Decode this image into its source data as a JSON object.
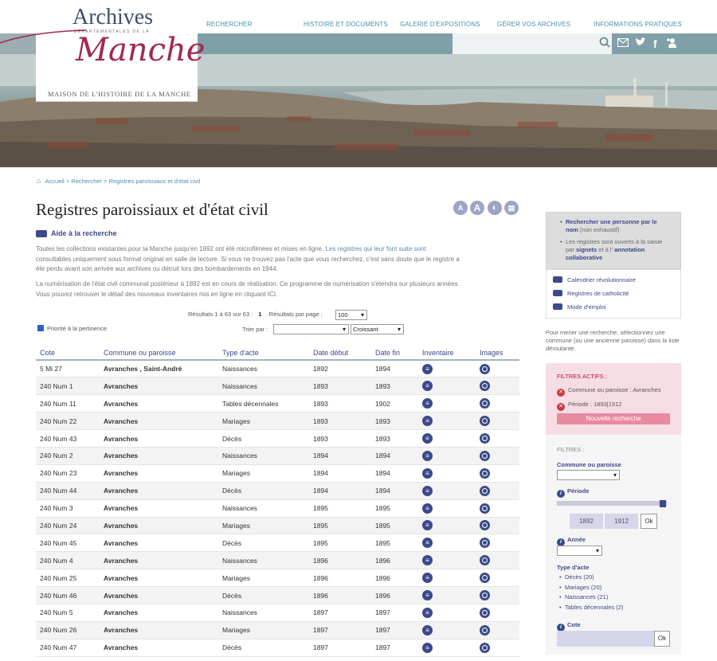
{
  "header": {
    "logo_top": "Archives",
    "logo_dept": "DÉPARTEMENTALES DE LA",
    "logo_main": "Manche",
    "logo_sub": "MAISON DE L'HISTOIRE DE LA MANCHE",
    "nav": [
      "RECHERCHER",
      "HISTOIRE ET DOCUMENTS",
      "GALERIE D'EXPOSITIONS",
      "GÉRER VOS ARCHIVES",
      "INFORMATIONS PRATIQUES"
    ]
  },
  "breadcrumb": "Accueil > Rechercher > Registres paroissiaux et d'état civil",
  "page_title": "Registres paroissiaux et d'état civil",
  "help_label": "Aide à la recherche",
  "intro": {
    "p1a": "Toutes les collections existantes pour la Manche jusqu'en 1892 ont été microfilmées et mises en ligne.",
    "p1b": " Les registres qui leur font suite sont",
    "p1c": "consultables uniquement sous format original en salle de lecture. Si vous ne trouvez pas l'acte que vous recherchez, c'est sans doute que le registre a",
    "p1d": "été perdu avant son arrivée aux archives ou détruit lors des bombardements en 1944.",
    "p2a": "La numérisation de l'état civil communal postérieur à 1892 est en cours de réalisation. Ce programme de numérisation s'étendra sur plusieurs années.",
    "p2b": "Vous pouvez retrouver le détail des nouveaux inventaires mis en ligne en cliquant ICI."
  },
  "results": {
    "summary": "Résultats 1 à 63 sur 63 :",
    "page": "1",
    "per_page_label": "Résultats par page :",
    "per_page_value": "100",
    "sort_label": "Trier par :",
    "sort_order": "Croissant",
    "priority_label": "Priorité à la pertinence"
  },
  "table": {
    "headers": [
      "Cote",
      "Commune ou paroisse",
      "Type d'acte",
      "Date début",
      "Date fin",
      "Inventaire",
      "Images"
    ],
    "rows": [
      [
        "5 Mi 27",
        "Avranches , Saint-André",
        "Naissances",
        "1892",
        "1894"
      ],
      [
        "240 Num 1",
        "Avranches",
        "Naissances",
        "1893",
        "1893"
      ],
      [
        "240 Num 11",
        "Avranches",
        "Tables décennales",
        "1893",
        "1902"
      ],
      [
        "240 Num 22",
        "Avranches",
        "Mariages",
        "1893",
        "1893"
      ],
      [
        "240 Num 43",
        "Avranches",
        "Décès",
        "1893",
        "1893"
      ],
      [
        "240 Num 2",
        "Avranches",
        "Naissances",
        "1894",
        "1894"
      ],
      [
        "240 Num 23",
        "Avranches",
        "Mariages",
        "1894",
        "1894"
      ],
      [
        "240 Num 44",
        "Avranches",
        "Décès",
        "1894",
        "1894"
      ],
      [
        "240 Num 3",
        "Avranches",
        "Naissances",
        "1895",
        "1895"
      ],
      [
        "240 Num 24",
        "Avranches",
        "Mariages",
        "1895",
        "1895"
      ],
      [
        "240 Num 45",
        "Avranches",
        "Décès",
        "1895",
        "1895"
      ],
      [
        "240 Num 4",
        "Avranches",
        "Naissances",
        "1896",
        "1896"
      ],
      [
        "240 Num 25",
        "Avranches",
        "Mariages",
        "1896",
        "1896"
      ],
      [
        "240 Num 46",
        "Avranches",
        "Décès",
        "1896",
        "1896"
      ],
      [
        "240 Num 5",
        "Avranches",
        "Naissances",
        "1897",
        "1897"
      ],
      [
        "240 Num 26",
        "Avranches",
        "Mariages",
        "1897",
        "1897"
      ],
      [
        "240 Num 47",
        "Avranches",
        "Décès",
        "1897",
        "1897"
      ]
    ]
  },
  "sidebar": {
    "box1_a1": "Rechercher une personne par le",
    "box1_a2": "nom",
    "box1_a3": " (non exhaustif)",
    "box1_b1": "Les registres sont ouverts à la saisie",
    "box1_b2": "par ",
    "box1_b3": "signets",
    "box1_b4": " et à l' ",
    "box1_b5": "annotation",
    "box1_b6": "collaborative",
    "links": [
      "Calendrier révolutionnaire",
      "Registres de catholicité",
      "Mode d'emploi"
    ],
    "note": "Pour mener une recherche, sélectionnez une commune (ou une ancienne paroisse) dans la liste déroulante.",
    "active_title": "FILTRES ACTIFS :",
    "active": [
      "Commune ou paroisse : Avranches",
      "Période : 1893|1912"
    ],
    "new_search": "Nouvelle recherche",
    "filters_title": "FILTRES :",
    "commune_label": "Commune ou paroisse",
    "periode_label": "Période",
    "year_from": "1892",
    "year_to": "1912",
    "ok": "Ok",
    "annee_label": "Année",
    "type_label": "Type d'acte",
    "types": [
      "Décès (20)",
      "Mariages (20)",
      "Naissances (21)",
      "Tables décennales (2)"
    ],
    "cote_label": "Cote"
  }
}
